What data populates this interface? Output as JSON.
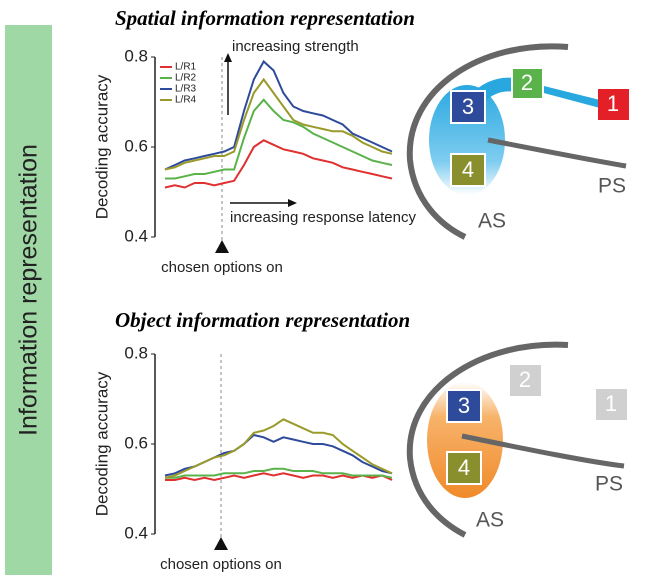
{
  "side_label": "Information representation",
  "chart_data": [
    {
      "type": "line",
      "title": "Spatial information representation",
      "ylabel": "Decoding accuracy",
      "ylim": [
        0.4,
        0.8
      ],
      "yticks": [
        0.4,
        0.6,
        0.8
      ],
      "annotations": [
        "increasing strength",
        "increasing response latency",
        "chosen options on"
      ],
      "series": [
        {
          "name": "L/R1",
          "color": "#e03030",
          "values": [
            0.51,
            0.515,
            0.51,
            0.52,
            0.52,
            0.515,
            0.52,
            0.525,
            0.56,
            0.6,
            0.615,
            0.605,
            0.595,
            0.59,
            0.585,
            0.575,
            0.57,
            0.565,
            0.555,
            0.55,
            0.545,
            0.54,
            0.535,
            0.53
          ]
        },
        {
          "name": "L/R2",
          "color": "#5ab34a",
          "values": [
            0.53,
            0.53,
            0.535,
            0.54,
            0.54,
            0.545,
            0.55,
            0.55,
            0.62,
            0.68,
            0.705,
            0.68,
            0.66,
            0.655,
            0.645,
            0.63,
            0.62,
            0.61,
            0.6,
            0.59,
            0.58,
            0.57,
            0.565,
            0.56
          ]
        },
        {
          "name": "L/R3",
          "color": "#2e4b9b",
          "values": [
            0.55,
            0.56,
            0.57,
            0.575,
            0.58,
            0.585,
            0.59,
            0.6,
            0.68,
            0.75,
            0.79,
            0.77,
            0.72,
            0.69,
            0.68,
            0.675,
            0.67,
            0.66,
            0.65,
            0.63,
            0.62,
            0.61,
            0.6,
            0.59
          ]
        },
        {
          "name": "L/R4",
          "color": "#9a9a2a",
          "values": [
            0.55,
            0.555,
            0.565,
            0.57,
            0.575,
            0.58,
            0.58,
            0.59,
            0.66,
            0.72,
            0.75,
            0.72,
            0.69,
            0.66,
            0.65,
            0.645,
            0.64,
            0.635,
            0.635,
            0.625,
            0.61,
            0.6,
            0.59,
            0.585
          ]
        }
      ]
    },
    {
      "type": "line",
      "title": "Object information representation",
      "ylabel": "Decoding accuracy",
      "ylim": [
        0.4,
        0.8
      ],
      "yticks": [
        0.4,
        0.6,
        0.8
      ],
      "annotations": [
        "chosen options on"
      ],
      "series": [
        {
          "color": "#e03030",
          "values": [
            0.52,
            0.52,
            0.525,
            0.52,
            0.525,
            0.52,
            0.525,
            0.53,
            0.525,
            0.53,
            0.535,
            0.53,
            0.535,
            0.53,
            0.525,
            0.53,
            0.53,
            0.525,
            0.53,
            0.525,
            0.53,
            0.525,
            0.53,
            0.52
          ]
        },
        {
          "color": "#5ab34a",
          "values": [
            0.525,
            0.525,
            0.53,
            0.53,
            0.53,
            0.53,
            0.535,
            0.535,
            0.535,
            0.54,
            0.54,
            0.545,
            0.545,
            0.54,
            0.54,
            0.54,
            0.535,
            0.535,
            0.535,
            0.53,
            0.53,
            0.53,
            0.53,
            0.525
          ]
        },
        {
          "color": "#2e4b9b",
          "values": [
            0.53,
            0.535,
            0.545,
            0.55,
            0.56,
            0.57,
            0.58,
            0.585,
            0.6,
            0.62,
            0.615,
            0.605,
            0.615,
            0.61,
            0.605,
            0.6,
            0.6,
            0.595,
            0.585,
            0.575,
            0.56,
            0.55,
            0.54,
            0.535
          ]
        },
        {
          "color": "#9a9a2a",
          "values": [
            0.525,
            0.53,
            0.54,
            0.55,
            0.56,
            0.57,
            0.575,
            0.585,
            0.6,
            0.625,
            0.63,
            0.64,
            0.655,
            0.645,
            0.635,
            0.625,
            0.625,
            0.62,
            0.6,
            0.585,
            0.57,
            0.555,
            0.545,
            0.535
          ]
        }
      ]
    }
  ],
  "diagrams": [
    {
      "boxes": [
        "1",
        "2",
        "3",
        "4"
      ],
      "sulci": [
        "AS",
        "PS"
      ]
    },
    {
      "boxes": [
        "1",
        "2",
        "3",
        "4"
      ],
      "sulci": [
        "AS",
        "PS"
      ]
    }
  ]
}
